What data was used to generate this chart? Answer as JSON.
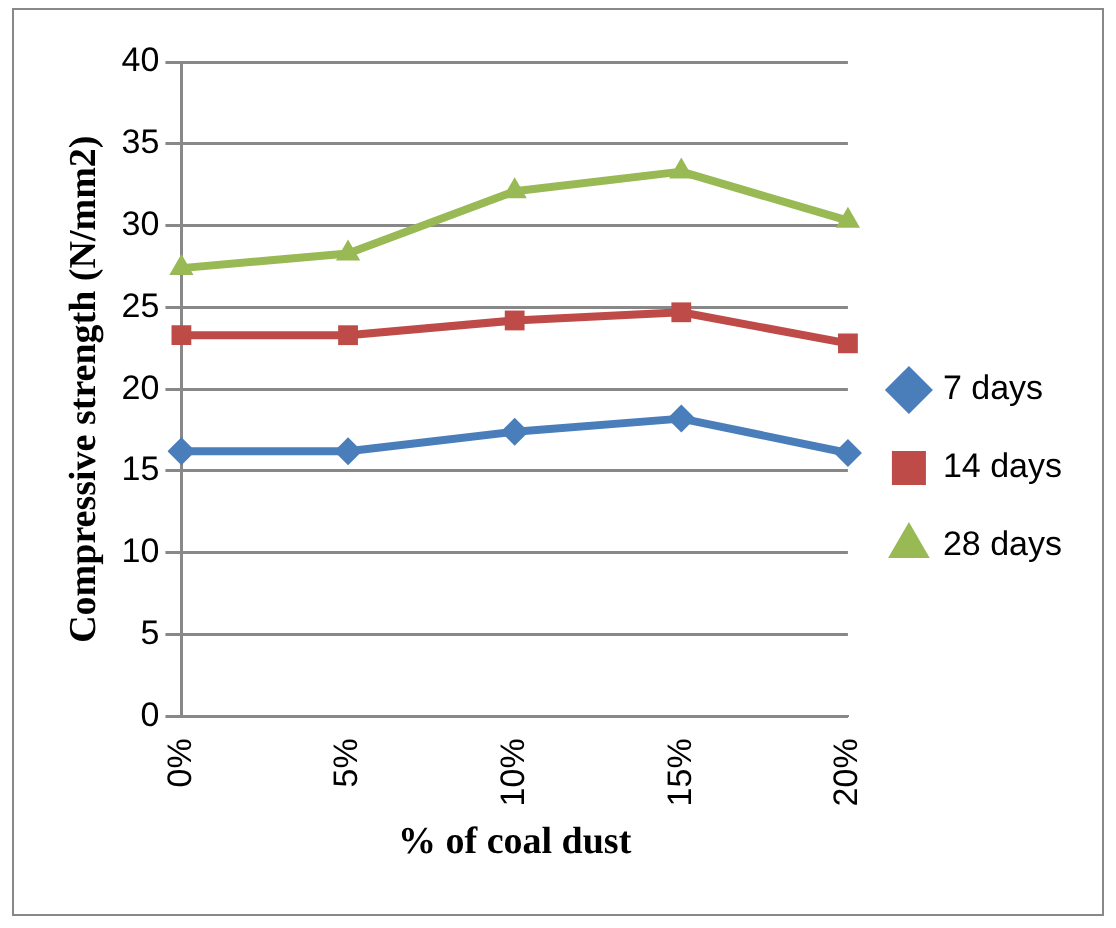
{
  "chart_data": {
    "type": "line",
    "xlabel": "% of coal dust",
    "ylabel": "Compressive strength (N/mm2)",
    "categories": [
      "0%",
      "5%",
      "10%",
      "15%",
      "20%"
    ],
    "series": [
      {
        "name": "7 days",
        "color": "#4a7ebb",
        "marker": "diamond",
        "values": [
          16.2,
          16.2,
          17.4,
          18.2,
          16.1
        ]
      },
      {
        "name": "14 days",
        "color": "#be4b48",
        "marker": "square",
        "values": [
          23.3,
          23.3,
          24.2,
          24.7,
          22.8
        ]
      },
      {
        "name": "28 days",
        "color": "#98b954",
        "marker": "triangle",
        "values": [
          27.4,
          28.3,
          32.1,
          33.3,
          30.3
        ]
      }
    ],
    "ylim": [
      0,
      40
    ],
    "yticks": [
      0,
      5,
      10,
      15,
      20,
      25,
      30,
      35,
      40
    ],
    "grid": "y",
    "legend": "right"
  }
}
